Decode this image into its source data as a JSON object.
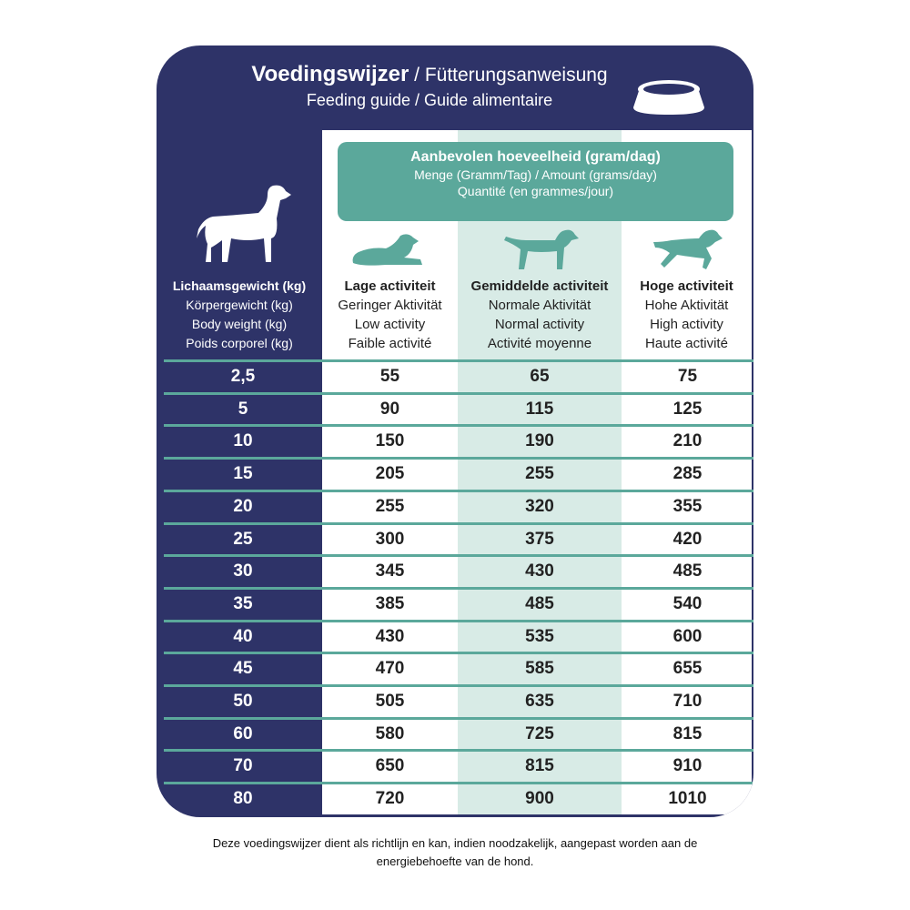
{
  "header": {
    "title_bold": "Voedingswijzer",
    "title_rest": " / Fütterungsanweisung",
    "subtitle": "Feeding guide / Guide alimentaire",
    "bowl_icon": "dog-bowl-icon"
  },
  "amount_box": {
    "line1": "Aanbevolen hoeveelheid (gram/dag)",
    "line2": "Menge (Gramm/Tag) / Amount (grams/day)",
    "line3": "Quantité (en grammes/jour)"
  },
  "colors": {
    "navy": "#2e3368",
    "teal": "#5ba89b",
    "light_teal": "#d8ebe6"
  },
  "columns": [
    {
      "nl": "Lichaamsgewicht (kg)",
      "de": "Körpergewicht (kg)",
      "en": "Body weight (kg)",
      "fr": "Poids corporel (kg)"
    },
    {
      "nl": "Lage activiteit",
      "de": "Geringer Aktivität",
      "en": "Low activity",
      "fr": "Faible activité"
    },
    {
      "nl": "Gemiddelde activiteit",
      "de": "Normale Aktivität",
      "en": "Normal activity",
      "fr": "Activité moyenne"
    },
    {
      "nl": "Hoge activiteit",
      "de": "Hohe Aktivität",
      "en": "High activity",
      "fr": "Haute activité"
    }
  ],
  "rows": [
    [
      "2,5",
      "55",
      "65",
      "75"
    ],
    [
      "5",
      "90",
      "115",
      "125"
    ],
    [
      "10",
      "150",
      "190",
      "210"
    ],
    [
      "15",
      "205",
      "255",
      "285"
    ],
    [
      "20",
      "255",
      "320",
      "355"
    ],
    [
      "25",
      "300",
      "375",
      "420"
    ],
    [
      "30",
      "345",
      "430",
      "485"
    ],
    [
      "35",
      "385",
      "485",
      "540"
    ],
    [
      "40",
      "430",
      "535",
      "600"
    ],
    [
      "45",
      "470",
      "585",
      "655"
    ],
    [
      "50",
      "505",
      "635",
      "710"
    ],
    [
      "60",
      "580",
      "725",
      "815"
    ],
    [
      "70",
      "650",
      "815",
      "910"
    ],
    [
      "80",
      "720",
      "900",
      "1010"
    ]
  ],
  "footer": {
    "line1": "Deze voedingswijzer dient als richtlijn en kan, indien noodzakelijk, aangepast worden aan de",
    "line2": "energiebehoefte van de hond."
  }
}
